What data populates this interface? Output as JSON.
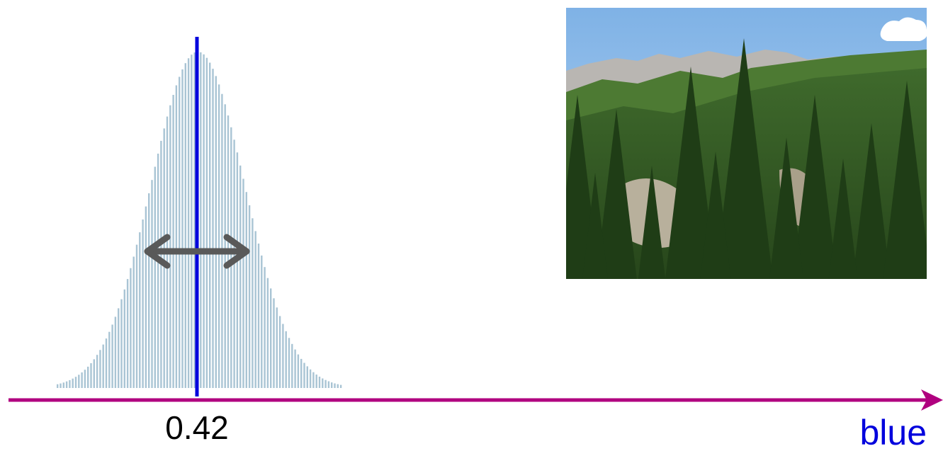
{
  "axis": {
    "label": "blue",
    "marker_label": "0.42"
  }
}
